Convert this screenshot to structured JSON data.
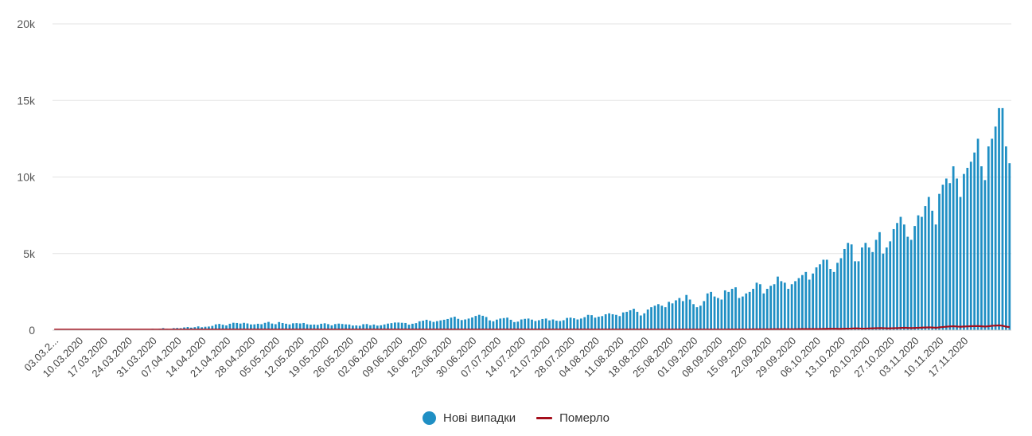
{
  "chart_data": {
    "type": "bar",
    "colors": {
      "cases": "#1f8fc4",
      "deaths": "#a50f1c",
      "grid": "#e3e3e3",
      "axis": "#cccccc"
    },
    "grid": true,
    "legend_position": "bottom-center",
    "ylim": [
      0,
      20000
    ],
    "y_ticks": [
      {
        "value": 0,
        "label": "0"
      },
      {
        "value": 5000,
        "label": "5k"
      },
      {
        "value": 10000,
        "label": "10k"
      },
      {
        "value": 15000,
        "label": "15k"
      },
      {
        "value": 20000,
        "label": "20k"
      }
    ],
    "x_tick_labels": [
      "03.03.2...",
      "10.03.2020",
      "17.03.2020",
      "24.03.2020",
      "31.03.2020",
      "07.04.2020",
      "14.04.2020",
      "21.04.2020",
      "28.04.2020",
      "05.05.2020",
      "12.05.2020",
      "19.05.2020",
      "26.05.2020",
      "02.06.2020",
      "09.06.2020",
      "16.06.2020",
      "23.06.2020",
      "30.06.2020",
      "07.07.2020",
      "14.07.2020",
      "21.07.2020",
      "28.07.2020",
      "04.08.2020",
      "11.08.2020",
      "18.08.2020",
      "25.08.2020",
      "01.09.2020",
      "08.09.2020",
      "15.09.2020",
      "22.09.2020",
      "29.09.2020",
      "06.10.2020",
      "13.10.2020",
      "20.10.2020",
      "27.10.2020",
      "03.11.2020",
      "10.11.2020",
      "17.11.2020"
    ],
    "x_start": "2020-03-03",
    "x_end": "2020-11-22",
    "series": [
      {
        "name": "Нові випадки",
        "type": "bar",
        "values": [
          1,
          0,
          0,
          1,
          0,
          0,
          0,
          0,
          0,
          0,
          2,
          0,
          3,
          2,
          6,
          1,
          10,
          11,
          6,
          12,
          30,
          26,
          34,
          13,
          42,
          63,
          61,
          41,
          102,
          73,
          100,
          136,
          92,
          74,
          134,
          144,
          132,
          181,
          206,
          168,
          198,
          248,
          192,
          224,
          239,
          281,
          380,
          410,
          357,
          310,
          420,
          485,
          470,
          432,
          480,
          440,
          375,
          380,
          420,
          390,
          480,
          540,
          433,
          392,
          530,
          467,
          421,
          376,
          450,
          461,
          440,
          470,
          386,
          361,
          368,
          350,
          420,
          450,
          395,
          316,
          400,
          430,
          404,
          380,
          370,
          303,
          310,
          290,
          390,
          400,
          320,
          370,
          300,
          320,
          373,
          430,
          460,
          500,
          500,
          483,
          470,
          360,
          420,
          460,
          580,
          620,
          680,
          610,
          540,
          590,
          640,
          681,
          730,
          820,
          880,
          740,
          660,
          700,
          759,
          830,
          930,
          1004,
          940,
          860,
          640,
          580,
          690,
          760,
          790,
          820,
          680,
          530,
          560,
          700,
          740,
          760,
          690,
          600,
          650,
          730,
          760,
          640,
          700,
          620,
          600,
          650,
          800,
          820,
          780,
          700,
          760,
          850,
          1000,
          980,
          820,
          880,
          920,
          1040,
          1100,
          1040,
          1000,
          920,
          1160,
          1200,
          1300,
          1400,
          1200,
          960,
          1100,
          1350,
          1500,
          1600,
          1700,
          1600,
          1500,
          1850,
          1750,
          1950,
          2100,
          1900,
          2300,
          2000,
          1700,
          1500,
          1600,
          1900,
          2400,
          2500,
          2200,
          2100,
          2000,
          2600,
          2500,
          2700,
          2800,
          2100,
          2200,
          2400,
          2500,
          2700,
          3100,
          3000,
          2400,
          2700,
          2900,
          3000,
          3500,
          3200,
          3100,
          2700,
          3000,
          3200,
          3400,
          3600,
          3800,
          3300,
          3700,
          4100,
          4300,
          4600,
          4600,
          4000,
          3800,
          4400,
          4700,
          5300,
          5700,
          5600,
          4500,
          4500,
          5400,
          5700,
          5400,
          5100,
          5900,
          6400,
          5000,
          5400,
          5800,
          6600,
          7000,
          7400,
          6900,
          6100,
          5900,
          6800,
          7500,
          7400,
          8100,
          8700,
          7800,
          6900,
          8900,
          9500,
          9900,
          9600,
          10700,
          9900,
          8700,
          10200,
          10600,
          11000,
          11600,
          12500,
          10700,
          9800,
          12000,
          12500,
          13300,
          14500,
          14500,
          12000,
          10900
        ]
      },
      {
        "name": "Померло",
        "type": "line",
        "values": [
          0,
          0,
          0,
          0,
          0,
          0,
          0,
          0,
          0,
          0,
          0,
          0,
          0,
          0,
          1,
          0,
          1,
          1,
          1,
          1,
          1,
          1,
          1,
          1,
          2,
          2,
          2,
          1,
          2,
          1,
          2,
          4,
          4,
          3,
          3,
          4,
          5,
          6,
          5,
          6,
          7,
          8,
          9,
          9,
          8,
          10,
          12,
          13,
          14,
          12,
          14,
          15,
          16,
          17,
          18,
          16,
          17,
          14,
          15,
          14,
          17,
          18,
          14,
          13,
          15,
          14,
          13,
          13,
          12,
          12,
          11,
          11,
          10,
          10,
          9,
          10,
          10,
          10,
          11,
          9,
          10,
          10,
          11,
          10,
          12,
          11,
          11,
          10,
          11,
          12,
          12,
          11,
          11,
          12,
          13,
          13,
          14,
          14,
          13,
          12,
          13,
          12,
          13,
          14,
          15,
          15,
          14,
          13,
          12,
          14,
          15,
          16,
          17,
          16,
          15,
          15,
          17,
          18,
          17,
          17,
          18,
          19,
          20,
          19,
          16,
          15,
          17,
          18,
          17,
          18,
          17,
          15,
          14,
          16,
          17,
          18,
          16,
          16,
          16,
          17,
          17,
          17,
          16,
          18,
          17,
          18,
          19,
          20,
          22,
          21,
          21,
          20,
          21,
          23,
          24,
          25,
          23,
          22,
          22,
          24,
          25,
          26,
          27,
          27,
          26,
          24,
          24,
          26,
          27,
          28,
          30,
          31,
          30,
          28,
          27,
          29,
          30,
          31,
          33,
          34,
          33,
          32,
          31,
          33,
          35,
          37,
          38,
          40,
          38,
          36,
          36,
          38,
          40,
          42,
          45,
          48,
          46,
          44,
          44,
          47,
          50,
          52,
          55,
          54,
          52,
          51,
          54,
          58,
          60,
          62,
          64,
          60,
          58,
          62,
          66,
          70,
          74,
          76,
          72,
          70,
          74,
          80,
          86,
          90,
          95,
          90,
          86,
          90,
          96,
          102,
          110,
          116,
          106,
          100,
          108,
          116,
          124,
          130,
          136,
          126,
          118,
          124,
          130,
          138,
          148,
          156,
          144,
          136,
          150,
          160,
          168,
          176,
          184,
          170,
          160,
          190,
          210,
          230,
          250,
          256,
          236,
          226,
          240,
          250,
          258,
          266,
          270,
          252,
          236,
          260,
          290,
          300,
          310,
          290,
          230,
          200
        ]
      }
    ]
  },
  "legend": {
    "items": [
      {
        "label": "Нові випадки",
        "color": "#1f8fc4",
        "marker": "circle"
      },
      {
        "label": "Померло",
        "color": "#a50f1c",
        "marker": "line"
      }
    ]
  }
}
